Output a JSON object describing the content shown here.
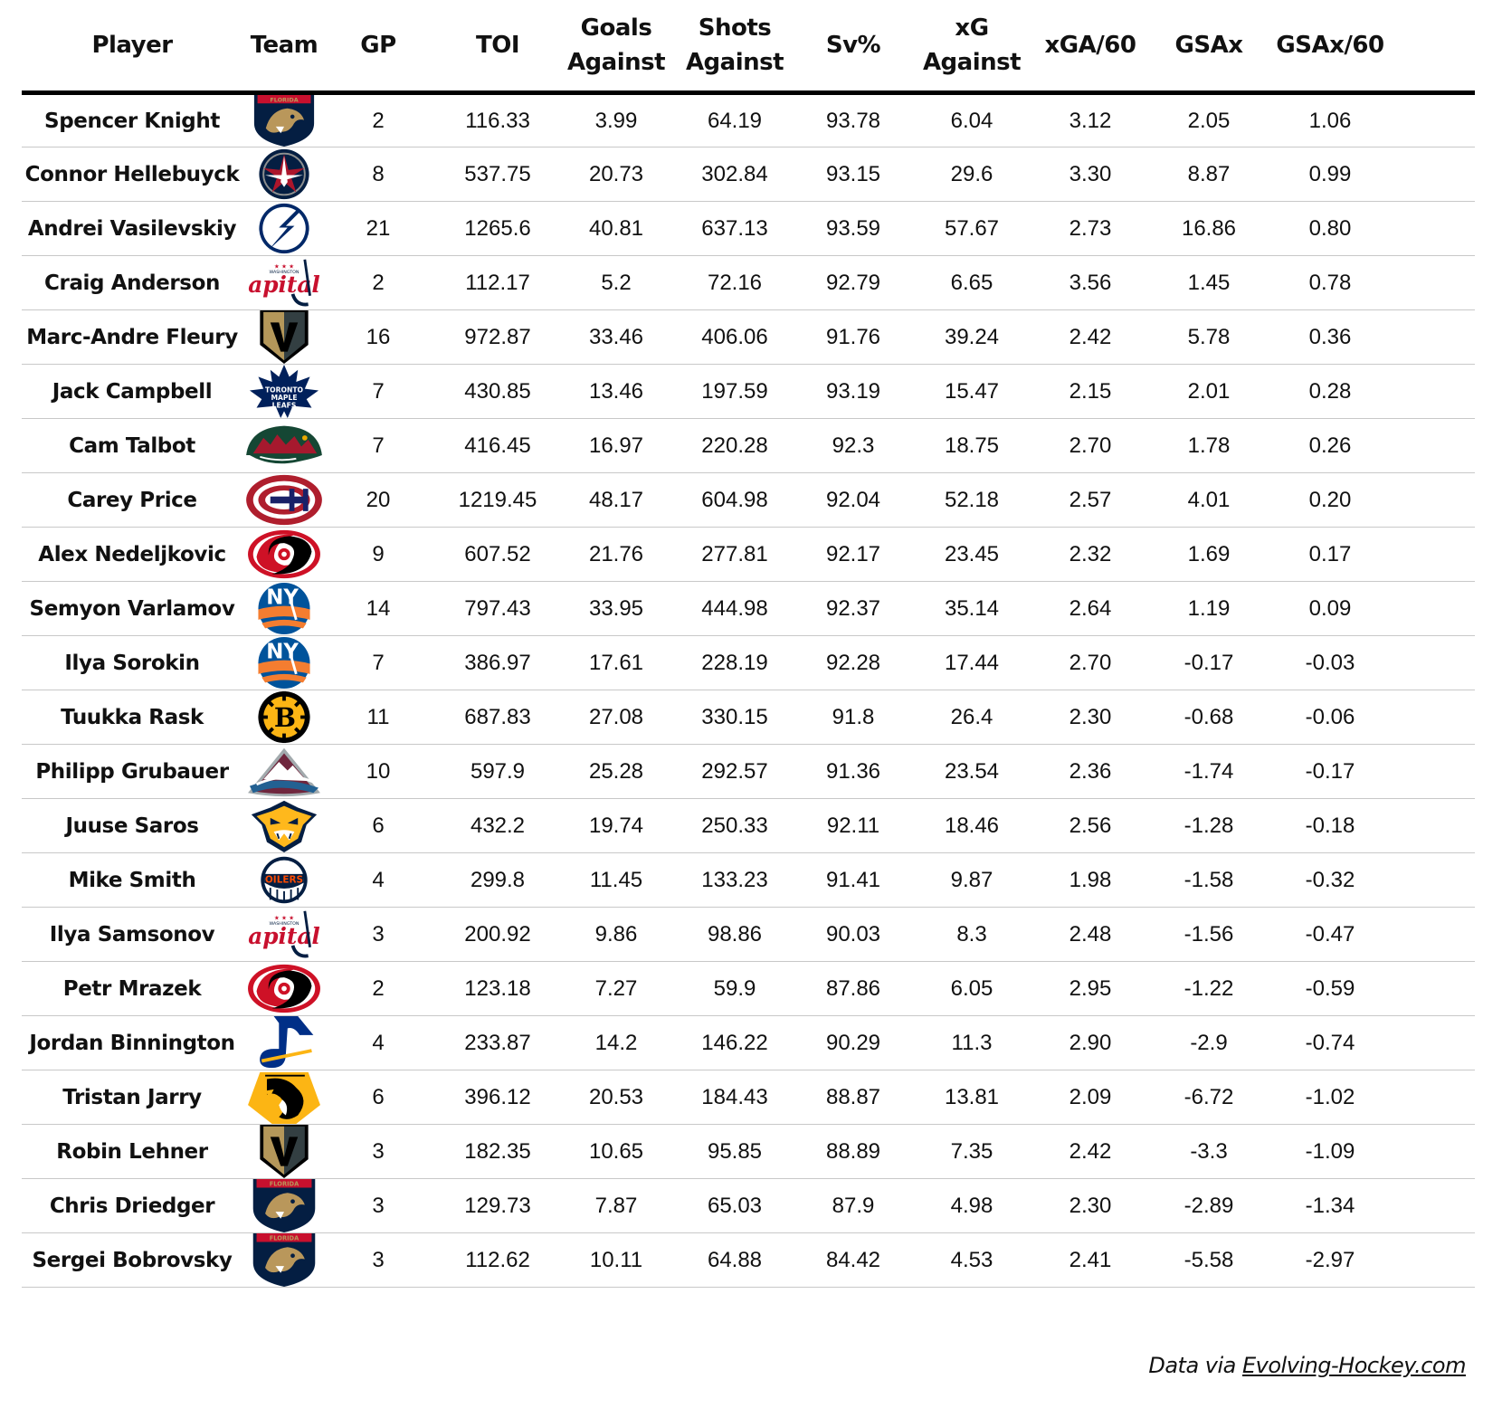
{
  "chart_data": {
    "type": "table",
    "columns": [
      "Player",
      "Team",
      "GP",
      "TOI",
      "Goals Against",
      "Shots Against",
      "Sv%",
      "xG Against",
      "xGA/60",
      "GSAx",
      "GSAx/60"
    ],
    "rows": [
      {
        "player": "Spencer Knight",
        "team": "FLA",
        "gp": "2",
        "toi": "116.33",
        "ga": "3.99",
        "sa": "64.19",
        "sv": "93.78",
        "xga": "6.04",
        "xga60": "3.12",
        "gsax": "2.05",
        "gsax60": "1.06"
      },
      {
        "player": "Connor Hellebuyck",
        "team": "WPG",
        "gp": "8",
        "toi": "537.75",
        "ga": "20.73",
        "sa": "302.84",
        "sv": "93.15",
        "xga": "29.6",
        "xga60": "3.30",
        "gsax": "8.87",
        "gsax60": "0.99"
      },
      {
        "player": "Andrei Vasilevskiy",
        "team": "TBL",
        "gp": "21",
        "toi": "1265.6",
        "ga": "40.81",
        "sa": "637.13",
        "sv": "93.59",
        "xga": "57.67",
        "xga60": "2.73",
        "gsax": "16.86",
        "gsax60": "0.80"
      },
      {
        "player": "Craig Anderson",
        "team": "WSH",
        "gp": "2",
        "toi": "112.17",
        "ga": "5.2",
        "sa": "72.16",
        "sv": "92.79",
        "xga": "6.65",
        "xga60": "3.56",
        "gsax": "1.45",
        "gsax60": "0.78"
      },
      {
        "player": "Marc-Andre Fleury",
        "team": "VGK",
        "gp": "16",
        "toi": "972.87",
        "ga": "33.46",
        "sa": "406.06",
        "sv": "91.76",
        "xga": "39.24",
        "xga60": "2.42",
        "gsax": "5.78",
        "gsax60": "0.36"
      },
      {
        "player": "Jack Campbell",
        "team": "TOR",
        "gp": "7",
        "toi": "430.85",
        "ga": "13.46",
        "sa": "197.59",
        "sv": "93.19",
        "xga": "15.47",
        "xga60": "2.15",
        "gsax": "2.01",
        "gsax60": "0.28"
      },
      {
        "player": "Cam Talbot",
        "team": "MIN",
        "gp": "7",
        "toi": "416.45",
        "ga": "16.97",
        "sa": "220.28",
        "sv": "92.3",
        "xga": "18.75",
        "xga60": "2.70",
        "gsax": "1.78",
        "gsax60": "0.26"
      },
      {
        "player": "Carey Price",
        "team": "MTL",
        "gp": "20",
        "toi": "1219.45",
        "ga": "48.17",
        "sa": "604.98",
        "sv": "92.04",
        "xga": "52.18",
        "xga60": "2.57",
        "gsax": "4.01",
        "gsax60": "0.20"
      },
      {
        "player": "Alex Nedeljkovic",
        "team": "CAR",
        "gp": "9",
        "toi": "607.52",
        "ga": "21.76",
        "sa": "277.81",
        "sv": "92.17",
        "xga": "23.45",
        "xga60": "2.32",
        "gsax": "1.69",
        "gsax60": "0.17"
      },
      {
        "player": "Semyon Varlamov",
        "team": "NYI",
        "gp": "14",
        "toi": "797.43",
        "ga": "33.95",
        "sa": "444.98",
        "sv": "92.37",
        "xga": "35.14",
        "xga60": "2.64",
        "gsax": "1.19",
        "gsax60": "0.09"
      },
      {
        "player": "Ilya Sorokin",
        "team": "NYI",
        "gp": "7",
        "toi": "386.97",
        "ga": "17.61",
        "sa": "228.19",
        "sv": "92.28",
        "xga": "17.44",
        "xga60": "2.70",
        "gsax": "-0.17",
        "gsax60": "-0.03"
      },
      {
        "player": "Tuukka Rask",
        "team": "BOS",
        "gp": "11",
        "toi": "687.83",
        "ga": "27.08",
        "sa": "330.15",
        "sv": "91.8",
        "xga": "26.4",
        "xga60": "2.30",
        "gsax": "-0.68",
        "gsax60": "-0.06"
      },
      {
        "player": "Philipp Grubauer",
        "team": "COL",
        "gp": "10",
        "toi": "597.9",
        "ga": "25.28",
        "sa": "292.57",
        "sv": "91.36",
        "xga": "23.54",
        "xga60": "2.36",
        "gsax": "-1.74",
        "gsax60": "-0.17"
      },
      {
        "player": "Juuse Saros",
        "team": "NSH",
        "gp": "6",
        "toi": "432.2",
        "ga": "19.74",
        "sa": "250.33",
        "sv": "92.11",
        "xga": "18.46",
        "xga60": "2.56",
        "gsax": "-1.28",
        "gsax60": "-0.18"
      },
      {
        "player": "Mike Smith",
        "team": "EDM",
        "gp": "4",
        "toi": "299.8",
        "ga": "11.45",
        "sa": "133.23",
        "sv": "91.41",
        "xga": "9.87",
        "xga60": "1.98",
        "gsax": "-1.58",
        "gsax60": "-0.32"
      },
      {
        "player": "Ilya Samsonov",
        "team": "WSH",
        "gp": "3",
        "toi": "200.92",
        "ga": "9.86",
        "sa": "98.86",
        "sv": "90.03",
        "xga": "8.3",
        "xga60": "2.48",
        "gsax": "-1.56",
        "gsax60": "-0.47"
      },
      {
        "player": "Petr Mrazek",
        "team": "CAR",
        "gp": "2",
        "toi": "123.18",
        "ga": "7.27",
        "sa": "59.9",
        "sv": "87.86",
        "xga": "6.05",
        "xga60": "2.95",
        "gsax": "-1.22",
        "gsax60": "-0.59"
      },
      {
        "player": "Jordan Binnington",
        "team": "STL",
        "gp": "4",
        "toi": "233.87",
        "ga": "14.2",
        "sa": "146.22",
        "sv": "90.29",
        "xga": "11.3",
        "xga60": "2.90",
        "gsax": "-2.9",
        "gsax60": "-0.74"
      },
      {
        "player": "Tristan Jarry",
        "team": "PIT",
        "gp": "6",
        "toi": "396.12",
        "ga": "20.53",
        "sa": "184.43",
        "sv": "88.87",
        "xga": "13.81",
        "xga60": "2.09",
        "gsax": "-6.72",
        "gsax60": "-1.02"
      },
      {
        "player": "Robin Lehner",
        "team": "VGK",
        "gp": "3",
        "toi": "182.35",
        "ga": "10.65",
        "sa": "95.85",
        "sv": "88.89",
        "xga": "7.35",
        "xga60": "2.42",
        "gsax": "-3.3",
        "gsax60": "-1.09"
      },
      {
        "player": "Chris Driedger",
        "team": "FLA",
        "gp": "3",
        "toi": "129.73",
        "ga": "7.87",
        "sa": "65.03",
        "sv": "87.9",
        "xga": "4.98",
        "xga60": "2.30",
        "gsax": "-2.89",
        "gsax60": "-1.34"
      },
      {
        "player": "Sergei Bobrovsky",
        "team": "FLA",
        "gp": "3",
        "toi": "112.62",
        "ga": "10.11",
        "sa": "64.88",
        "sv": "84.42",
        "xga": "4.53",
        "xga60": "2.41",
        "gsax": "-5.58",
        "gsax60": "-2.97"
      }
    ]
  },
  "header": {
    "player": "Player",
    "team": "Team",
    "gp": "GP",
    "toi": "TOI",
    "ga_line1": "Goals",
    "ga_line2": "Against",
    "sa_line1": "Shots",
    "sa_line2": "Against",
    "sv": "Sv%",
    "xga_line1": "xG",
    "xga_line2": "Against",
    "xga60": "xGA/60",
    "gsax": "GSAx",
    "gsax60": "GSAx/60"
  },
  "team_logos": {
    "FLA": {
      "icon": "panther-icon",
      "colors": [
        "#041e42",
        "#c8102e",
        "#b9975b"
      ],
      "text": "FLORIDA"
    },
    "WPG": {
      "icon": "jet-icon",
      "colors": [
        "#041e42",
        "#ffffff",
        "#ac162c"
      ]
    },
    "TBL": {
      "icon": "lightning-bolt-icon",
      "colors": [
        "#002868",
        "#ffffff"
      ]
    },
    "WSH": {
      "icon": "capitals-wordmark-icon",
      "colors": [
        "#041e42",
        "#c8102e"
      ],
      "text": "apital"
    },
    "VGK": {
      "icon": "helmet-v-icon",
      "colors": [
        "#b4975a",
        "#333f42",
        "#000000"
      ]
    },
    "TOR": {
      "icon": "maple-leaf-icon",
      "colors": [
        "#00205b",
        "#ffffff"
      ],
      "text": "TORONTO MAPLE LEAFS"
    },
    "MIN": {
      "icon": "wild-icon",
      "colors": [
        "#154734",
        "#a6192e",
        "#eaaa00"
      ]
    },
    "MTL": {
      "icon": "ch-icon",
      "colors": [
        "#af1e2d",
        "#192168",
        "#ffffff"
      ]
    },
    "CAR": {
      "icon": "hurricane-icon",
      "colors": [
        "#ce1126",
        "#000000",
        "#ffffff"
      ]
    },
    "NYI": {
      "icon": "islanders-icon",
      "colors": [
        "#00539b",
        "#f47d30"
      ],
      "text": "NY"
    },
    "BOS": {
      "icon": "spoked-b-icon",
      "colors": [
        "#000000",
        "#fcb514"
      ],
      "text": "B"
    },
    "COL": {
      "icon": "mountain-a-icon",
      "colors": [
        "#6f263d",
        "#236192",
        "#a2aaad"
      ]
    },
    "NSH": {
      "icon": "predator-icon",
      "colors": [
        "#ffb81c",
        "#041e42",
        "#ffffff"
      ]
    },
    "EDM": {
      "icon": "oilers-icon",
      "colors": [
        "#041e42",
        "#fc4c02",
        "#ffffff"
      ],
      "text": "OILERS"
    },
    "STL": {
      "icon": "blue-note-icon",
      "colors": [
        "#002f87",
        "#fcb514"
      ]
    },
    "PIT": {
      "icon": "penguin-icon",
      "colors": [
        "#000000",
        "#fcb514",
        "#ffffff"
      ]
    }
  },
  "footer": {
    "prefix": "Data via ",
    "link": "Evolving-Hockey.com"
  }
}
